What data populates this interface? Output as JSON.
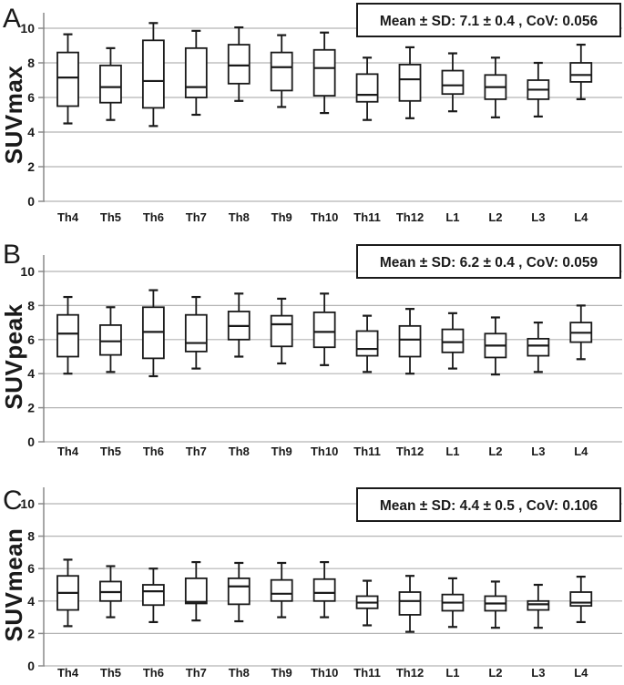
{
  "figure": {
    "background": "#ffffff",
    "ink_color": "#1a1a1a",
    "gridline_color": "#b4b4b4",
    "axis_color": "#8a8a8a",
    "box_fill": "#ffffff"
  },
  "chart_data": [
    {
      "type": "boxplot",
      "panel_letter": "A",
      "ylabel": "SUVmax",
      "annotation": "Mean ± SD:  7.1 ± 0.4 , CoV: 0.056",
      "mean": 7.1,
      "sd": 0.4,
      "cov": 0.056,
      "ylim": [
        0,
        10.9
      ],
      "yticks": [
        0,
        2,
        4,
        6,
        8,
        10
      ],
      "grid": true,
      "box_keys": [
        "min",
        "q1",
        "median",
        "q3",
        "max"
      ],
      "categories": [
        "Th4",
        "Th5",
        "Th6",
        "Th7",
        "Th8",
        "Th9",
        "Th10",
        "Th11",
        "Th12",
        "L1",
        "L2",
        "L3",
        "L4"
      ],
      "boxes": [
        [
          4.5,
          5.5,
          7.15,
          8.6,
          9.65
        ],
        [
          4.7,
          5.7,
          6.6,
          7.85,
          8.85
        ],
        [
          4.35,
          5.4,
          6.95,
          9.3,
          10.3
        ],
        [
          5.0,
          6.0,
          6.6,
          8.85,
          9.85
        ],
        [
          5.8,
          6.8,
          7.85,
          9.05,
          10.05
        ],
        [
          5.45,
          6.4,
          7.75,
          8.6,
          9.6
        ],
        [
          5.1,
          6.1,
          7.7,
          8.75,
          9.75
        ],
        [
          4.7,
          5.75,
          6.15,
          7.35,
          8.3
        ],
        [
          4.8,
          5.8,
          7.05,
          7.9,
          8.9
        ],
        [
          5.2,
          6.2,
          6.7,
          7.55,
          8.55
        ],
        [
          4.85,
          5.9,
          6.6,
          7.3,
          8.3
        ],
        [
          4.9,
          5.9,
          6.45,
          7.0,
          8.0
        ],
        [
          5.9,
          6.9,
          7.3,
          8.0,
          9.05
        ]
      ]
    },
    {
      "type": "boxplot",
      "panel_letter": "B",
      "ylabel": "SUVpeak",
      "annotation": "Mean ± SD:  6.2 ± 0.4 , CoV: 0.059",
      "mean": 6.2,
      "sd": 0.4,
      "cov": 0.059,
      "ylim": [
        0,
        10.9
      ],
      "yticks": [
        0,
        2,
        4,
        6,
        8,
        10
      ],
      "grid": true,
      "box_keys": [
        "min",
        "q1",
        "median",
        "q3",
        "max"
      ],
      "categories": [
        "Th4",
        "Th5",
        "Th6",
        "Th7",
        "Th8",
        "Th9",
        "Th10",
        "Th11",
        "Th12",
        "L1",
        "L2",
        "L3",
        "L4"
      ],
      "boxes": [
        [
          4.0,
          5.0,
          6.35,
          7.45,
          8.5
        ],
        [
          4.1,
          5.1,
          5.9,
          6.85,
          7.9
        ],
        [
          3.85,
          4.9,
          6.45,
          7.9,
          8.9
        ],
        [
          4.3,
          5.3,
          5.8,
          7.45,
          8.5
        ],
        [
          5.0,
          6.0,
          6.8,
          7.65,
          8.7
        ],
        [
          4.6,
          5.6,
          6.9,
          7.4,
          8.4
        ],
        [
          4.5,
          5.55,
          6.45,
          7.6,
          8.7
        ],
        [
          4.1,
          5.05,
          5.45,
          6.5,
          7.4
        ],
        [
          4.0,
          5.0,
          6.0,
          6.8,
          7.8
        ],
        [
          4.3,
          5.25,
          5.85,
          6.6,
          7.55
        ],
        [
          3.95,
          4.95,
          5.65,
          6.35,
          7.3
        ],
        [
          4.1,
          5.05,
          5.65,
          6.05,
          7.0
        ],
        [
          4.85,
          5.85,
          6.4,
          7.0,
          8.0
        ]
      ]
    },
    {
      "type": "boxplot",
      "panel_letter": "C",
      "ylabel": "SUVmean",
      "annotation": "Mean ± SD:  4.4 ± 0.5 , CoV: 0.106",
      "mean": 4.4,
      "sd": 0.5,
      "cov": 0.106,
      "ylim": [
        0,
        10.9
      ],
      "yticks": [
        0,
        2,
        4,
        6,
        8,
        10
      ],
      "grid": true,
      "box_keys": [
        "min",
        "q1",
        "median",
        "q3",
        "max"
      ],
      "categories": [
        "Th4",
        "Th5",
        "Th6",
        "Th7",
        "Th8",
        "Th9",
        "Th10",
        "Th11",
        "Th12",
        "L1",
        "L2",
        "L3",
        "L4"
      ],
      "boxes": [
        [
          2.45,
          3.45,
          4.5,
          5.55,
          6.55
        ],
        [
          3.0,
          4.0,
          4.55,
          5.2,
          6.15
        ],
        [
          2.7,
          3.75,
          4.6,
          5.0,
          6.0
        ],
        [
          2.8,
          3.85,
          3.95,
          5.4,
          6.4
        ],
        [
          2.75,
          3.8,
          4.9,
          5.4,
          6.35
        ],
        [
          3.0,
          4.0,
          4.45,
          5.3,
          6.35
        ],
        [
          3.0,
          4.0,
          4.5,
          5.35,
          6.4
        ],
        [
          2.5,
          3.55,
          3.9,
          4.3,
          5.25
        ],
        [
          2.1,
          3.15,
          4.0,
          4.55,
          5.55
        ],
        [
          2.4,
          3.4,
          3.9,
          4.4,
          5.4
        ],
        [
          2.35,
          3.4,
          3.85,
          4.3,
          5.2
        ],
        [
          2.35,
          3.45,
          3.8,
          4.0,
          5.0
        ],
        [
          2.7,
          3.7,
          3.9,
          4.55,
          5.5
        ]
      ]
    }
  ]
}
